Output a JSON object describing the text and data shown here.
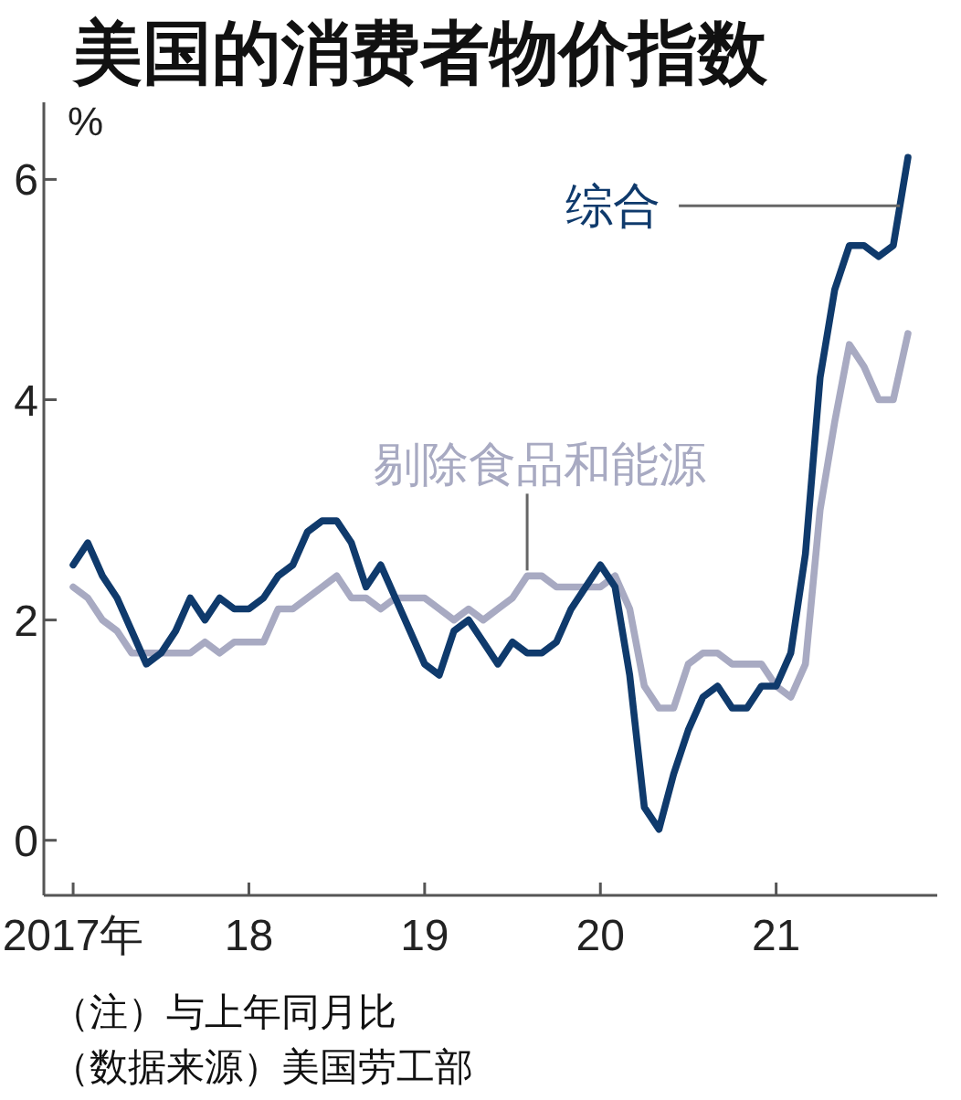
{
  "chart_data": {
    "type": "line",
    "title": "美国的消费者物价指数",
    "ylabel": "%",
    "x": [
      "2017-01",
      "2017-02",
      "2017-03",
      "2017-04",
      "2017-05",
      "2017-06",
      "2017-07",
      "2017-08",
      "2017-09",
      "2017-10",
      "2017-11",
      "2017-12",
      "2018-01",
      "2018-02",
      "2018-03",
      "2018-04",
      "2018-05",
      "2018-06",
      "2018-07",
      "2018-08",
      "2018-09",
      "2018-10",
      "2018-11",
      "2018-12",
      "2019-01",
      "2019-02",
      "2019-03",
      "2019-04",
      "2019-05",
      "2019-06",
      "2019-07",
      "2019-08",
      "2019-09",
      "2019-10",
      "2019-11",
      "2019-12",
      "2020-01",
      "2020-02",
      "2020-03",
      "2020-04",
      "2020-05",
      "2020-06",
      "2020-07",
      "2020-08",
      "2020-09",
      "2020-10",
      "2020-11",
      "2020-12",
      "2021-01",
      "2021-02",
      "2021-03",
      "2021-04",
      "2021-05",
      "2021-06",
      "2021-07",
      "2021-08",
      "2021-09",
      "2021-10"
    ],
    "series": [
      {
        "name": "综合",
        "color": "#0f3a6c",
        "values": [
          2.5,
          2.7,
          2.4,
          2.2,
          1.9,
          1.6,
          1.7,
          1.9,
          2.2,
          2.0,
          2.2,
          2.1,
          2.1,
          2.2,
          2.4,
          2.5,
          2.8,
          2.9,
          2.9,
          2.7,
          2.3,
          2.5,
          2.2,
          1.9,
          1.6,
          1.5,
          1.9,
          2.0,
          1.8,
          1.6,
          1.8,
          1.7,
          1.7,
          1.8,
          2.1,
          2.3,
          2.5,
          2.3,
          1.5,
          0.3,
          0.1,
          0.6,
          1.0,
          1.3,
          1.4,
          1.2,
          1.2,
          1.4,
          1.4,
          1.7,
          2.6,
          4.2,
          5.0,
          5.4,
          5.4,
          5.3,
          5.4,
          6.2
        ]
      },
      {
        "name": "剔除食品和能源",
        "color": "#a8aac2",
        "values": [
          2.3,
          2.2,
          2.0,
          1.9,
          1.7,
          1.7,
          1.7,
          1.7,
          1.7,
          1.8,
          1.7,
          1.8,
          1.8,
          1.8,
          2.1,
          2.1,
          2.2,
          2.3,
          2.4,
          2.2,
          2.2,
          2.1,
          2.2,
          2.2,
          2.2,
          2.1,
          2.0,
          2.1,
          2.0,
          2.1,
          2.2,
          2.4,
          2.4,
          2.3,
          2.3,
          2.3,
          2.3,
          2.4,
          2.1,
          1.4,
          1.2,
          1.2,
          1.6,
          1.7,
          1.7,
          1.6,
          1.6,
          1.6,
          1.4,
          1.3,
          1.6,
          3.0,
          3.8,
          4.5,
          4.3,
          4.0,
          4.0,
          4.6
        ]
      }
    ],
    "xlim": [
      "2016-11",
      "2021-12"
    ],
    "xticks": [
      {
        "value": "2017-01",
        "label": "2017年"
      },
      {
        "value": "2018-01",
        "label": "18"
      },
      {
        "value": "2019-01",
        "label": "19"
      },
      {
        "value": "2020-01",
        "label": "20"
      },
      {
        "value": "2021-01",
        "label": "21"
      }
    ],
    "ylim": [
      -0.5,
      6.7
    ],
    "yticks": [
      0,
      2,
      4,
      6
    ],
    "annotations": [
      "（注）与上年同月比",
      "（数据来源）美国劳工部"
    ]
  }
}
